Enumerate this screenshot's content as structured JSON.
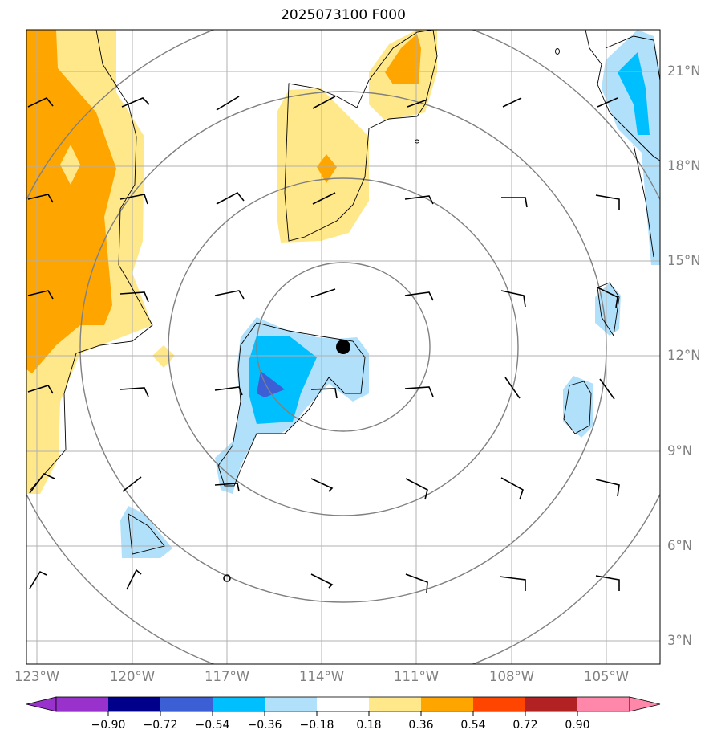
{
  "title": "2025073100 F000",
  "lat_labels": [
    "3°N",
    "6°N",
    "9°N",
    "12°N",
    "15°N",
    "18°N",
    "21°N"
  ],
  "lon_labels": [
    "123°W",
    "120°W",
    "117°W",
    "114°W",
    "111°W",
    "108°W",
    "105°W"
  ],
  "colorbar": {
    "labels": [
      "−0.90",
      "−0.72",
      "−0.54",
      "−0.36",
      "−0.18",
      "0.18",
      "0.36",
      "0.54",
      "0.72",
      "0.90"
    ],
    "colors": [
      "#9932cc",
      "#00008b",
      "#3d5fd6",
      "#00bfff",
      "#b0e0fa",
      "#ffffff",
      "#ffe88a",
      "#ffa500",
      "#ff4500",
      "#b22222",
      "#ff88aa"
    ]
  },
  "colors": {
    "pos_light": "#ffe88a",
    "pos_medium": "#ffa500",
    "neg_light": "#b0e0fa",
    "neg_medium": "#00bfff",
    "neg_strong": "#3d5fd6",
    "grid": "#b0b0b0",
    "range_rings": "#808080",
    "coastline": "#000000"
  },
  "center_marker": {
    "symbol": "filled-circle"
  }
}
